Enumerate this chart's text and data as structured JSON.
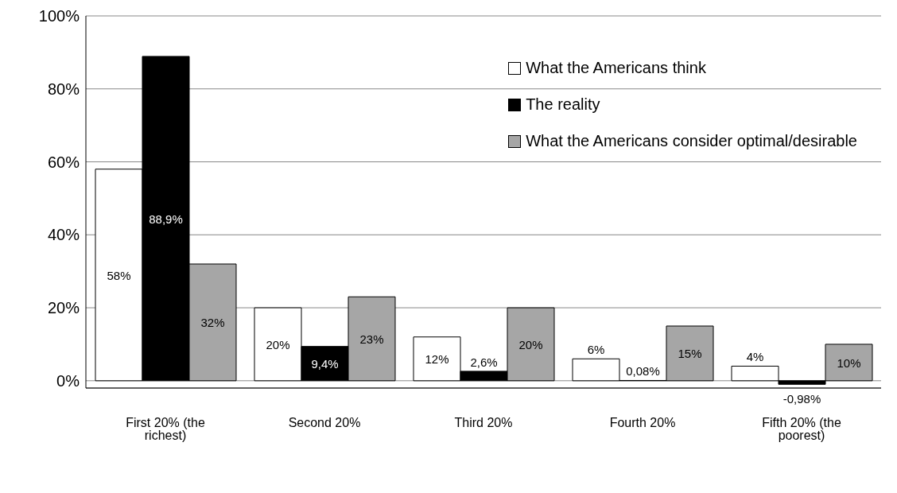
{
  "chart_data": {
    "type": "bar",
    "categories": [
      "First 20% (the richest)",
      "Second 20%",
      "Third 20%",
      "Fourth 20%",
      "Fifth 20% (the poorest)"
    ],
    "series": [
      {
        "name": "What the Americans think",
        "color": "#ffffff",
        "values": [
          58,
          20,
          12,
          6,
          4
        ],
        "value_labels": [
          "58%",
          "20%",
          "12%",
          "6%",
          "4%"
        ]
      },
      {
        "name": "The  reality",
        "color": "#000000",
        "values": [
          88.9,
          9.4,
          2.6,
          0.08,
          -0.98
        ],
        "value_labels": [
          "88,9%",
          "9,4%",
          "2,6%",
          "0,08%",
          "-0,98%"
        ]
      },
      {
        "name": "What the Americans consider optimal/desirable",
        "color": "#a6a6a6",
        "values": [
          32,
          23,
          20,
          15,
          10
        ],
        "value_labels": [
          "32%",
          "23%",
          "20%",
          "15%",
          "10%"
        ]
      }
    ],
    "ylim": [
      -2,
      100
    ],
    "yticks": [
      {
        "value": 0,
        "label": "0%"
      },
      {
        "value": 20,
        "label": "20%"
      },
      {
        "value": 40,
        "label": "40%"
      },
      {
        "value": 60,
        "label": "60%"
      },
      {
        "value": 80,
        "label": "80%"
      },
      {
        "value": 100,
        "label": "100%"
      }
    ],
    "grid": "y",
    "legend": "top right"
  }
}
